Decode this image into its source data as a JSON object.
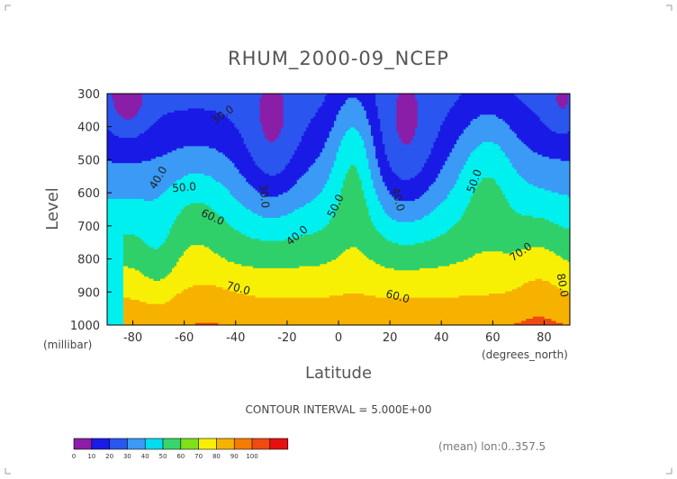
{
  "chart_data": {
    "type": "heatmap",
    "title": "RHUM_2000-09_NCEP",
    "xlabel": "Latitude",
    "ylabel": "Level",
    "xunits": "(degrees_north)",
    "yunits": "(millibar)",
    "x_ticks": [
      "-80",
      "-60",
      "-40",
      "-20",
      "0",
      "20",
      "40",
      "60",
      "80"
    ],
    "y_ticks": [
      "300",
      "400",
      "500",
      "600",
      "700",
      "800",
      "900",
      "1000"
    ],
    "xlim": [
      -90,
      90
    ],
    "ylim": [
      1000,
      300
    ],
    "contour_interval_text": "CONTOUR INTERVAL = 5.000E+00",
    "mean_text": "(mean) lon:0..357.5",
    "contour_labels": [
      {
        "text": "30.0",
        "lat": -45,
        "lev": 365,
        "rotate": -35
      },
      {
        "text": "40.0",
        "lat": -70,
        "lev": 555,
        "rotate": -60
      },
      {
        "text": "50.0",
        "lat": -60,
        "lev": 585,
        "rotate": -5
      },
      {
        "text": "60.0",
        "lat": -49,
        "lev": 675,
        "rotate": 25
      },
      {
        "text": "70.0",
        "lat": -39,
        "lev": 890,
        "rotate": 15
      },
      {
        "text": "30.0",
        "lat": -29,
        "lev": 610,
        "rotate": 85
      },
      {
        "text": "40.0",
        "lat": -16,
        "lev": 730,
        "rotate": -40
      },
      {
        "text": "50.0",
        "lat": -1,
        "lev": 640,
        "rotate": -65
      },
      {
        "text": "40.0",
        "lat": 23,
        "lev": 620,
        "rotate": 75
      },
      {
        "text": "60.0",
        "lat": 23,
        "lev": 915,
        "rotate": 15
      },
      {
        "text": "50.0",
        "lat": 53,
        "lev": 565,
        "rotate": -70
      },
      {
        "text": "70.0",
        "lat": 71,
        "lev": 780,
        "rotate": -35
      },
      {
        "text": "80.0",
        "lat": 87,
        "lev": 880,
        "rotate": 80
      }
    ],
    "colorbar": {
      "colors": [
        "#8a1ea8",
        "#1a1ae6",
        "#2a55ef",
        "#3a9af5",
        "#00dcf0",
        "#38d66a",
        "#7ee11a",
        "#f8f004",
        "#f7b200",
        "#f57c00",
        "#ef4a10",
        "#e61010"
      ],
      "labels": [
        "0",
        "10",
        "20",
        "30",
        "40",
        "50",
        "60",
        "70",
        "80",
        "90",
        "100"
      ]
    },
    "levels": [
      {
        "value": 30,
        "color": "#1a1ae6"
      },
      {
        "value": 40,
        "color": "#3a9af5"
      },
      {
        "value": 50,
        "color": "#00f0f0"
      },
      {
        "value": 60,
        "color": "#2fd06a"
      },
      {
        "value": 70,
        "color": "#f8f004"
      },
      {
        "value": 80,
        "color": "#f7b200"
      },
      {
        "value": 90,
        "color": "#ef4a10"
      }
    ],
    "background_color": "#2a55ef",
    "lowest_color": "#8a1ea8"
  }
}
